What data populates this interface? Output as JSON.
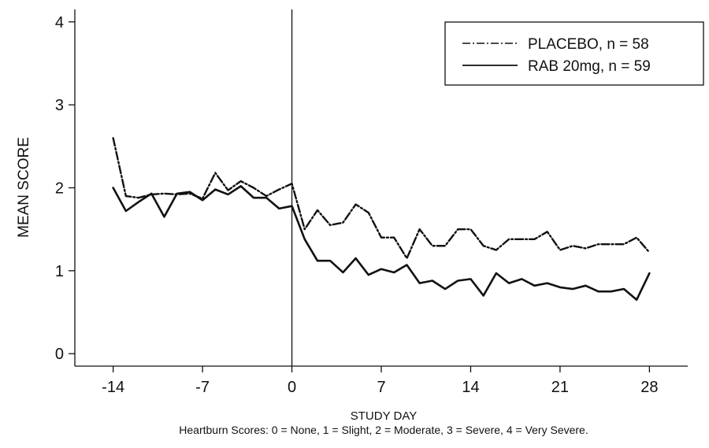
{
  "chart_data": {
    "type": "line",
    "xlabel": "STUDY DAY",
    "ylabel": "MEAN SCORE",
    "note": "Heartburn Scores: 0 = None, 1 = Slight, 2 = Moderate, 3 = Severe, 4 = Very Severe.",
    "xlim": [
      -17,
      31
    ],
    "ylim": [
      -0.15,
      4.15
    ],
    "x_ticks": [
      -14,
      -7,
      0,
      7,
      14,
      21,
      28
    ],
    "x_tick_labels": [
      "-14",
      "-7",
      "0",
      "7",
      "14",
      "21",
      "28"
    ],
    "y_ticks": [
      0,
      1,
      2,
      3,
      4
    ],
    "y_tick_labels": [
      "0",
      "1",
      "2",
      "3",
      "4"
    ],
    "reference_line_x": 0,
    "legend_position": "top-right",
    "x": [
      -14,
      -13,
      -12,
      -11,
      -10,
      -9,
      -8,
      -7,
      -6,
      -5,
      -4,
      -3,
      -2,
      -1,
      0,
      1,
      2,
      3,
      4,
      5,
      6,
      7,
      8,
      9,
      10,
      11,
      12,
      13,
      14,
      15,
      16,
      17,
      18,
      19,
      20,
      21,
      22,
      23,
      24,
      25,
      26,
      27,
      28
    ],
    "series": [
      {
        "name": "PLACEBO, n = 58",
        "style": "dashdot",
        "values": [
          2.6,
          1.9,
          1.88,
          1.92,
          1.93,
          1.92,
          1.93,
          1.87,
          2.18,
          1.97,
          2.08,
          2.0,
          1.9,
          1.98,
          2.05,
          1.5,
          1.73,
          1.55,
          1.58,
          1.8,
          1.7,
          1.4,
          1.4,
          1.15,
          1.5,
          1.3,
          1.3,
          1.5,
          1.5,
          1.3,
          1.25,
          1.38,
          1.38,
          1.38,
          1.47,
          1.25,
          1.3,
          1.27,
          1.32,
          1.32,
          1.32,
          1.4,
          1.22
        ]
      },
      {
        "name": "RAB 20mg, n = 59",
        "style": "solid",
        "values": [
          2.0,
          1.72,
          1.83,
          1.93,
          1.65,
          1.93,
          1.95,
          1.85,
          1.98,
          1.92,
          2.02,
          1.88,
          1.88,
          1.75,
          1.78,
          1.38,
          1.12,
          1.12,
          0.98,
          1.15,
          0.95,
          1.02,
          0.98,
          1.07,
          0.85,
          0.88,
          0.78,
          0.88,
          0.9,
          0.7,
          0.97,
          0.85,
          0.9,
          0.82,
          0.85,
          0.8,
          0.78,
          0.82,
          0.75,
          0.75,
          0.78,
          0.65,
          0.97
        ]
      }
    ]
  }
}
